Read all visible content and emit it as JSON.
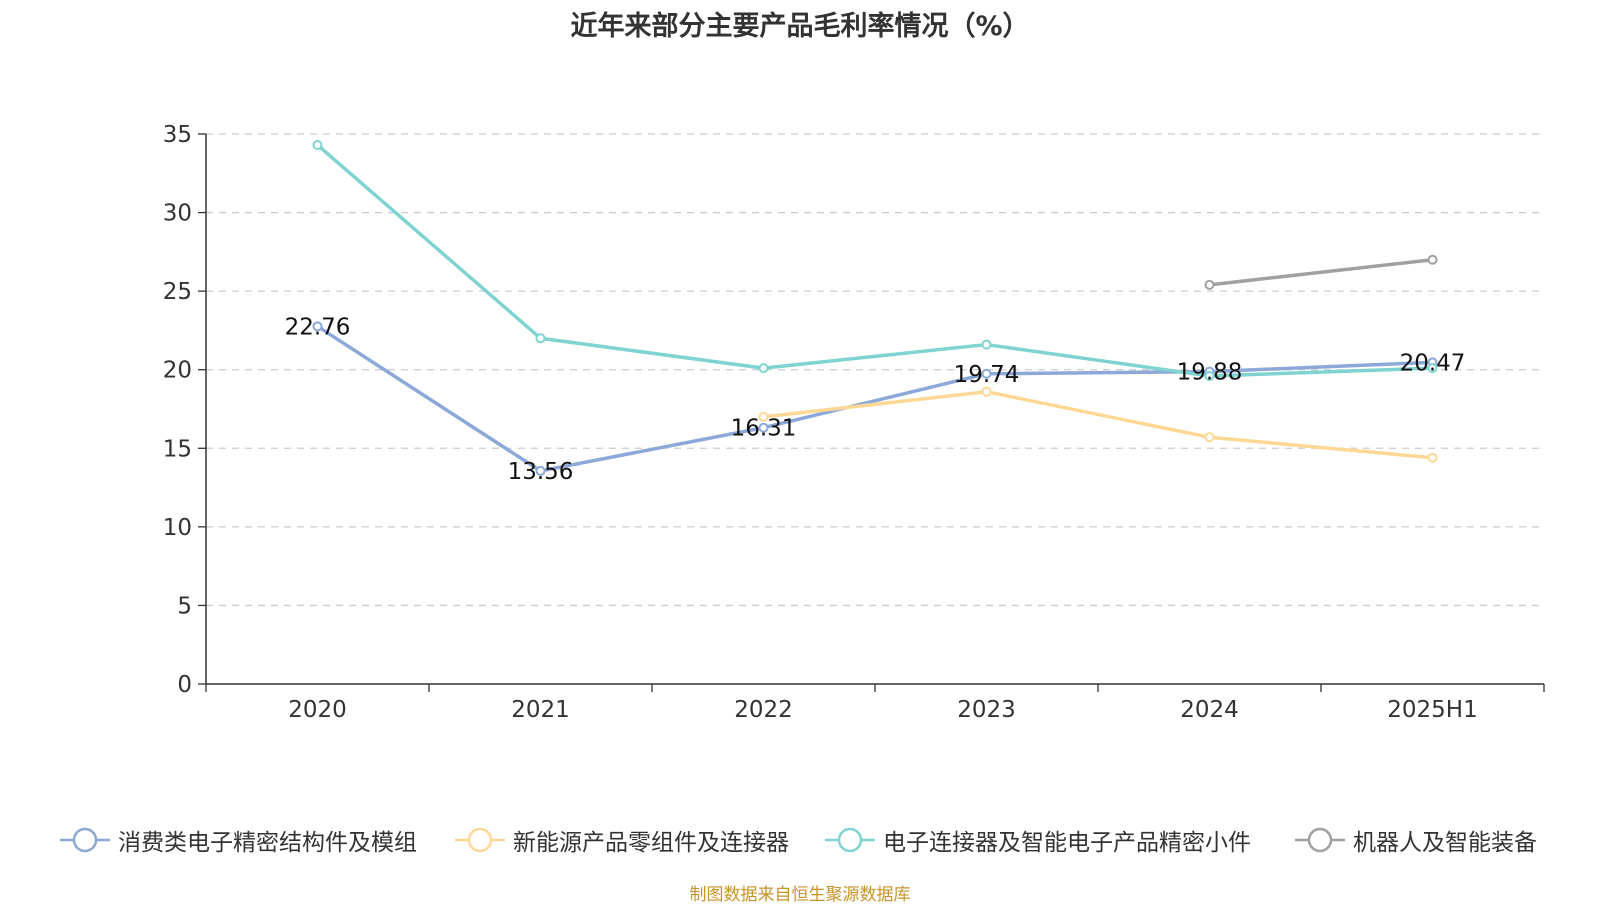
{
  "title": "近年来部分主要产品毛利率情况（%）",
  "source": "制图数据来自恒生聚源数据库",
  "chart_data": {
    "type": "line",
    "title": "近年来部分主要产品毛利率情况（%）",
    "categories": [
      "2020",
      "2021",
      "2022",
      "2023",
      "2024",
      "2025H1"
    ],
    "ylim": [
      0,
      35
    ],
    "yticks": [
      0,
      5,
      10,
      15,
      20,
      25,
      30,
      35
    ],
    "grid": "horizontal-dashed",
    "legend_position": "bottom",
    "series": [
      {
        "name": "消费类电子精密结构件及模组",
        "color": "#8ba8d8",
        "values": [
          22.76,
          13.56,
          16.31,
          19.74,
          19.88,
          20.47
        ],
        "show_labels": true
      },
      {
        "name": "新能源产品零组件及连接器",
        "color": "#fcd894",
        "values": [
          null,
          null,
          17.0,
          18.6,
          15.7,
          14.4
        ],
        "show_labels": false
      },
      {
        "name": "电子连接器及智能电子产品精密小件",
        "color": "#7fd3d0",
        "values": [
          34.3,
          22.0,
          20.1,
          21.6,
          19.6,
          20.1
        ],
        "show_labels": false
      },
      {
        "name": "机器人及智能装备",
        "color": "#a0a0a0",
        "values": [
          null,
          null,
          null,
          null,
          25.4,
          27.0
        ],
        "show_labels": false
      }
    ]
  }
}
